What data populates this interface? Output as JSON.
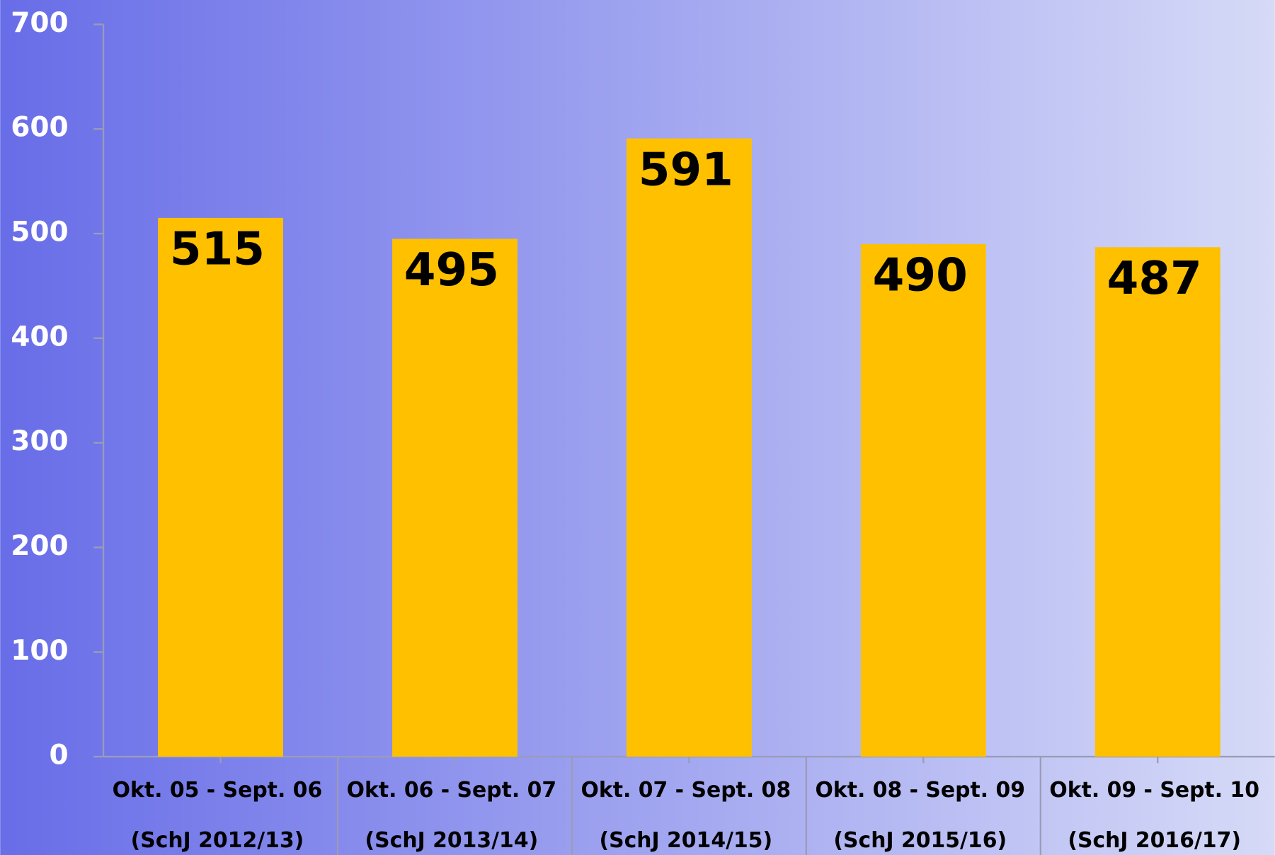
{
  "chart_data": {
    "type": "bar",
    "categories": [
      [
        "Okt. 05 - Sept. 06",
        "(SchJ 2012/13)"
      ],
      [
        "Okt. 06 - Sept. 07",
        "(SchJ 2013/14)"
      ],
      [
        "Okt. 07 - Sept. 08",
        "(SchJ 2014/15)"
      ],
      [
        "Okt. 08 - Sept. 09",
        "(SchJ 2015/16)"
      ],
      [
        "Okt. 09 - Sept. 10",
        "(SchJ 2016/17)"
      ]
    ],
    "values": [
      515,
      495,
      591,
      490,
      487
    ],
    "color": "#ffc000",
    "ylim": [
      0,
      700
    ],
    "yticks": [
      0,
      100,
      200,
      300,
      400,
      500,
      600,
      700
    ],
    "grid": false
  }
}
